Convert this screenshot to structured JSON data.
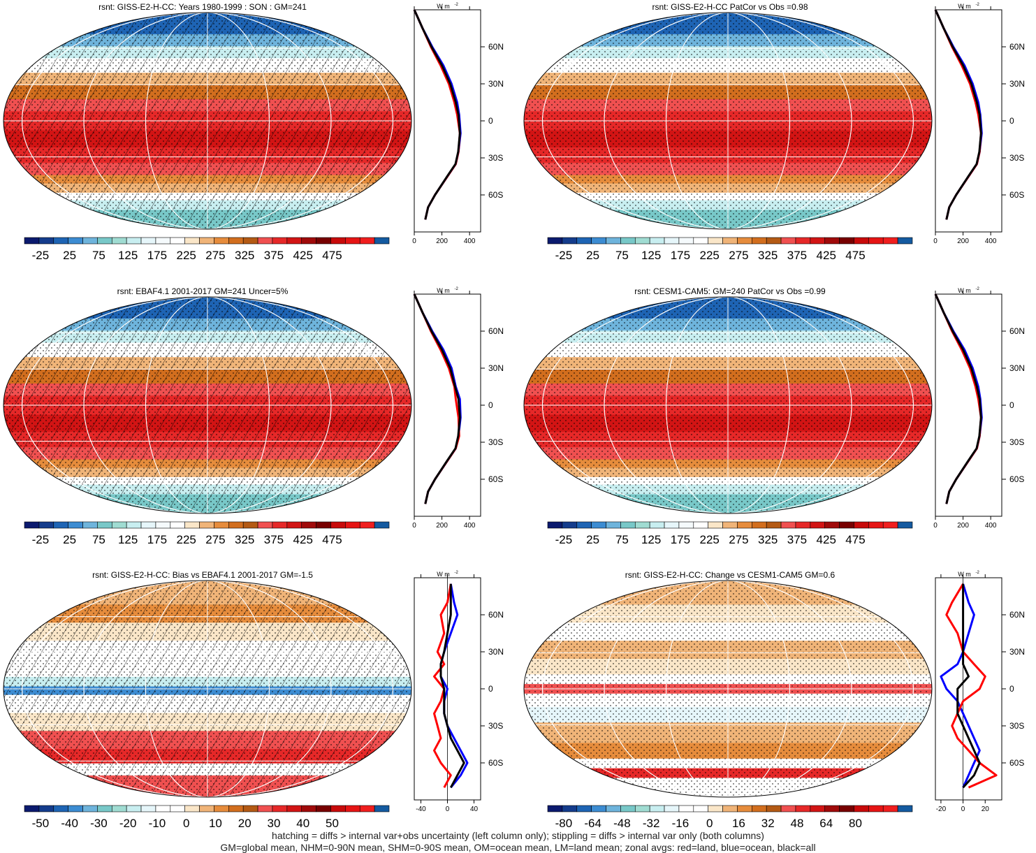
{
  "footer": {
    "line1": "hatching = diffs > internal var+obs uncertainty (left column only); stippling = diffs > internal var only (both columns)",
    "line2": "GM=global mean, NHM=0-90N mean, SHM=0-90S mean, OM=ocean mean, LM=land mean; zonal avgs: red=land, blue=ocean, black=all"
  },
  "colors": {
    "land": "#ff0000",
    "ocean": "#0000ff",
    "all": "#000000"
  },
  "zonal_units": "W m",
  "zonal_units_sup": "-2",
  "lat_ticks": [
    "60N",
    "30N",
    "0",
    "30S",
    "60S"
  ],
  "abs_palette": [
    "#0b1a6e",
    "#143c8c",
    "#1e64b4",
    "#3c8cd2",
    "#6eb4dc",
    "#78c8c8",
    "#a0dcd2",
    "#c8eef0",
    "#e6f6fa",
    "#f5fafc",
    "#ffffff",
    "#fae6c8",
    "#f0b478",
    "#e68c3c",
    "#d26e1e",
    "#b45a14",
    "#f05050",
    "#e62828",
    "#d21414",
    "#a00a0a",
    "#780000",
    "#c80a0a",
    "#e61414",
    "#f01e1e",
    "#145aa0"
  ],
  "diff_palette": [
    "#0b1a6e",
    "#143c8c",
    "#1e64b4",
    "#3c8cd2",
    "#6eb4dc",
    "#78c8c8",
    "#a0dcd2",
    "#c8eef0",
    "#e6f6fa",
    "#ffffff",
    "#ffffff",
    "#fae6c8",
    "#f0b478",
    "#e68c3c",
    "#d26e1e",
    "#b45a14",
    "#f05050",
    "#e62828",
    "#d21414",
    "#a00a0a",
    "#780000",
    "#c80a0a",
    "#e61414",
    "#f01e1e",
    "#145aa0"
  ],
  "panels": [
    {
      "title": "rsnt: GISS-E2-H-CC: Years 1980-1999 : SON : GM=241",
      "kind": "abs",
      "hatch": true,
      "colorbar_labels": [
        "-25",
        "25",
        "75",
        "125",
        "175",
        "225",
        "275",
        "325",
        "375",
        "425",
        "475"
      ],
      "zonal_xticks": [
        "0",
        "200",
        "400"
      ]
    },
    {
      "title": "rsnt: GISS-E2-H-CC PatCor vs Obs =0.98",
      "kind": "abs",
      "hatch": false,
      "colorbar_labels": [
        "-25",
        "25",
        "75",
        "125",
        "175",
        "225",
        "275",
        "325",
        "375",
        "425",
        "475"
      ],
      "zonal_xticks": [
        "0",
        "200",
        "400"
      ]
    },
    {
      "title": "rsnt: EBAF4.1 2001-2017 GM=241 Uncer=5%",
      "kind": "abs",
      "hatch": true,
      "colorbar_labels": [
        "-25",
        "25",
        "75",
        "125",
        "175",
        "225",
        "275",
        "325",
        "375",
        "425",
        "475"
      ],
      "zonal_xticks": [
        "0",
        "200",
        "400"
      ]
    },
    {
      "title": "rsnt: CESM1-CAM5: GM=240 PatCor vs Obs =0.99",
      "kind": "abs",
      "hatch": false,
      "colorbar_labels": [
        "-25",
        "25",
        "75",
        "125",
        "175",
        "225",
        "275",
        "325",
        "375",
        "425",
        "475"
      ],
      "zonal_xticks": [
        "0",
        "200",
        "400"
      ]
    },
    {
      "title": "rsnt: GISS-E2-H-CC: Bias vs EBAF4.1 2001-2017  GM=-1.5",
      "kind": "bias",
      "hatch": true,
      "colorbar_labels": [
        "-50",
        "-40",
        "-30",
        "-20",
        "-10",
        "0",
        "10",
        "20",
        "30",
        "40",
        "50"
      ],
      "zonal_xticks": [
        "-40",
        "0",
        "40"
      ]
    },
    {
      "title": "rsnt: GISS-E2-H-CC: Change vs CESM1-CAM5 GM=0.6",
      "kind": "change",
      "hatch": false,
      "colorbar_labels": [
        "-80",
        "-64",
        "-48",
        "-32",
        "-16",
        "0",
        "16",
        "32",
        "48",
        "64",
        "80"
      ],
      "zonal_xticks": [
        "-20",
        "0",
        "20"
      ]
    }
  ],
  "chart_data": [
    {
      "type": "line",
      "title": "rsnt: GISS-E2-H-CC: Years 1980-1999 : SON : GM=241",
      "xlim": [
        0,
        480
      ],
      "ylim": [
        -90,
        90
      ],
      "series": [
        {
          "name": "land",
          "x": [
            0,
            20,
            60,
            120,
            190,
            250,
            290,
            310,
            330,
            320,
            300,
            240,
            150,
            100,
            80
          ],
          "y": [
            90,
            85,
            75,
            60,
            45,
            30,
            15,
            5,
            -10,
            -25,
            -35,
            -45,
            -60,
            -70,
            -80
          ]
        },
        {
          "name": "ocean",
          "x": [
            0,
            20,
            60,
            130,
            210,
            270,
            310,
            325,
            335,
            320,
            300,
            240,
            150,
            100,
            80
          ],
          "y": [
            90,
            85,
            75,
            60,
            45,
            30,
            15,
            5,
            -10,
            -25,
            -35,
            -45,
            -60,
            -70,
            -80
          ]
        },
        {
          "name": "all",
          "x": [
            0,
            20,
            60,
            125,
            200,
            260,
            300,
            320,
            330,
            318,
            298,
            238,
            150,
            100,
            80
          ],
          "y": [
            90,
            85,
            75,
            60,
            45,
            30,
            15,
            5,
            -10,
            -25,
            -35,
            -45,
            -60,
            -70,
            -80
          ]
        }
      ]
    },
    {
      "type": "line",
      "title": "rsnt: GISS-E2-H-CC PatCor vs Obs =0.98",
      "xlim": [
        0,
        480
      ],
      "ylim": [
        -90,
        90
      ],
      "series": [
        {
          "name": "land",
          "x": [
            0,
            20,
            60,
            120,
            190,
            250,
            290,
            310,
            330,
            320,
            300,
            240,
            150,
            100,
            80
          ],
          "y": [
            90,
            85,
            75,
            60,
            45,
            30,
            15,
            5,
            -10,
            -25,
            -35,
            -45,
            -60,
            -70,
            -80
          ]
        },
        {
          "name": "ocean",
          "x": [
            0,
            20,
            60,
            130,
            210,
            270,
            310,
            325,
            335,
            320,
            300,
            240,
            150,
            100,
            80
          ],
          "y": [
            90,
            85,
            75,
            60,
            45,
            30,
            15,
            5,
            -10,
            -25,
            -35,
            -45,
            -60,
            -70,
            -80
          ]
        },
        {
          "name": "all",
          "x": [
            0,
            20,
            60,
            125,
            200,
            260,
            300,
            320,
            330,
            318,
            298,
            238,
            150,
            100,
            80
          ],
          "y": [
            90,
            85,
            75,
            60,
            45,
            30,
            15,
            5,
            -10,
            -25,
            -35,
            -45,
            -60,
            -70,
            -80
          ]
        }
      ]
    },
    {
      "type": "line",
      "title": "rsnt: EBAF4.1 2001-2017 GM=241 Uncer=5%",
      "xlim": [
        0,
        480
      ],
      "ylim": [
        -90,
        90
      ],
      "series": [
        {
          "name": "land",
          "x": [
            0,
            20,
            60,
            120,
            190,
            250,
            290,
            300,
            320,
            325,
            300,
            240,
            150,
            100,
            80
          ],
          "y": [
            90,
            85,
            75,
            60,
            45,
            30,
            15,
            5,
            -10,
            -25,
            -35,
            -45,
            -60,
            -70,
            -80
          ]
        },
        {
          "name": "ocean",
          "x": [
            0,
            20,
            60,
            130,
            210,
            270,
            300,
            330,
            335,
            320,
            300,
            240,
            150,
            100,
            80
          ],
          "y": [
            90,
            85,
            75,
            60,
            45,
            30,
            15,
            5,
            -10,
            -25,
            -35,
            -45,
            -60,
            -70,
            -80
          ]
        },
        {
          "name": "all",
          "x": [
            0,
            20,
            60,
            125,
            200,
            260,
            295,
            320,
            330,
            318,
            298,
            238,
            150,
            100,
            80
          ],
          "y": [
            90,
            85,
            75,
            60,
            45,
            30,
            15,
            5,
            -10,
            -25,
            -35,
            -45,
            -60,
            -70,
            -80
          ]
        }
      ]
    },
    {
      "type": "line",
      "title": "rsnt: CESM1-CAM5: GM=240 PatCor vs Obs =0.99",
      "xlim": [
        0,
        480
      ],
      "ylim": [
        -90,
        90
      ],
      "series": [
        {
          "name": "land",
          "x": [
            0,
            20,
            60,
            120,
            190,
            250,
            290,
            310,
            330,
            320,
            300,
            240,
            150,
            100,
            80
          ],
          "y": [
            90,
            85,
            75,
            60,
            45,
            30,
            15,
            5,
            -10,
            -25,
            -35,
            -45,
            -60,
            -70,
            -80
          ]
        },
        {
          "name": "ocean",
          "x": [
            0,
            20,
            60,
            130,
            210,
            270,
            310,
            325,
            335,
            320,
            300,
            240,
            150,
            100,
            80
          ],
          "y": [
            90,
            85,
            75,
            60,
            45,
            30,
            15,
            5,
            -10,
            -25,
            -35,
            -45,
            -60,
            -70,
            -80
          ]
        },
        {
          "name": "all",
          "x": [
            0,
            20,
            60,
            125,
            200,
            260,
            300,
            320,
            330,
            318,
            298,
            238,
            150,
            100,
            80
          ],
          "y": [
            90,
            85,
            75,
            60,
            45,
            30,
            15,
            5,
            -10,
            -25,
            -35,
            -45,
            -60,
            -70,
            -80
          ]
        }
      ]
    },
    {
      "type": "line",
      "title": "rsnt: GISS-E2-H-CC: Bias vs EBAF4.1 2001-2017  GM=-1.5",
      "xlim": [
        -50,
        50
      ],
      "ylim": [
        -90,
        90
      ],
      "series": [
        {
          "name": "land",
          "x": [
            5,
            0,
            -10,
            -5,
            -15,
            -5,
            -20,
            -5,
            -10,
            -20,
            -15,
            -10,
            -20,
            -10,
            5,
            -5
          ],
          "y": [
            85,
            70,
            60,
            45,
            30,
            20,
            10,
            0,
            -10,
            -20,
            -30,
            -40,
            -50,
            -60,
            -70,
            -80
          ]
        },
        {
          "name": "ocean",
          "x": [
            5,
            10,
            15,
            5,
            -5,
            -10,
            -10,
            0,
            -5,
            -5,
            0,
            10,
            20,
            30,
            20,
            5
          ],
          "y": [
            85,
            70,
            60,
            45,
            30,
            20,
            10,
            0,
            -10,
            -20,
            -30,
            -40,
            -50,
            -60,
            -70,
            -80
          ]
        },
        {
          "name": "all",
          "x": [
            5,
            5,
            5,
            0,
            -5,
            -10,
            -10,
            -5,
            -5,
            -5,
            0,
            5,
            15,
            25,
            15,
            5
          ],
          "y": [
            85,
            70,
            60,
            45,
            30,
            20,
            10,
            0,
            -10,
            -20,
            -30,
            -40,
            -50,
            -60,
            -70,
            -80
          ]
        }
      ]
    },
    {
      "type": "line",
      "title": "rsnt: GISS-E2-H-CC: Change vs CESM1-CAM5 GM=0.6",
      "xlim": [
        -25,
        35
      ],
      "ylim": [
        -90,
        90
      ],
      "series": [
        {
          "name": "land",
          "x": [
            0,
            -10,
            -15,
            -5,
            0,
            10,
            20,
            15,
            0,
            -5,
            -10,
            -5,
            5,
            15,
            30,
            5
          ],
          "y": [
            85,
            70,
            60,
            45,
            30,
            20,
            10,
            0,
            -10,
            -20,
            -30,
            -40,
            -50,
            -60,
            -70,
            -80
          ]
        },
        {
          "name": "ocean",
          "x": [
            0,
            5,
            10,
            5,
            0,
            -5,
            -20,
            -15,
            -5,
            0,
            5,
            10,
            15,
            10,
            5,
            0
          ],
          "y": [
            85,
            70,
            60,
            45,
            30,
            20,
            10,
            0,
            -10,
            -20,
            -30,
            -40,
            -50,
            -60,
            -70,
            -80
          ]
        },
        {
          "name": "all",
          "x": [
            0,
            0,
            0,
            0,
            0,
            0,
            5,
            -5,
            -5,
            -5,
            0,
            5,
            10,
            15,
            10,
            0
          ],
          "y": [
            85,
            70,
            60,
            45,
            30,
            20,
            10,
            0,
            -10,
            -20,
            -30,
            -40,
            -50,
            -60,
            -70,
            -80
          ]
        }
      ]
    }
  ]
}
